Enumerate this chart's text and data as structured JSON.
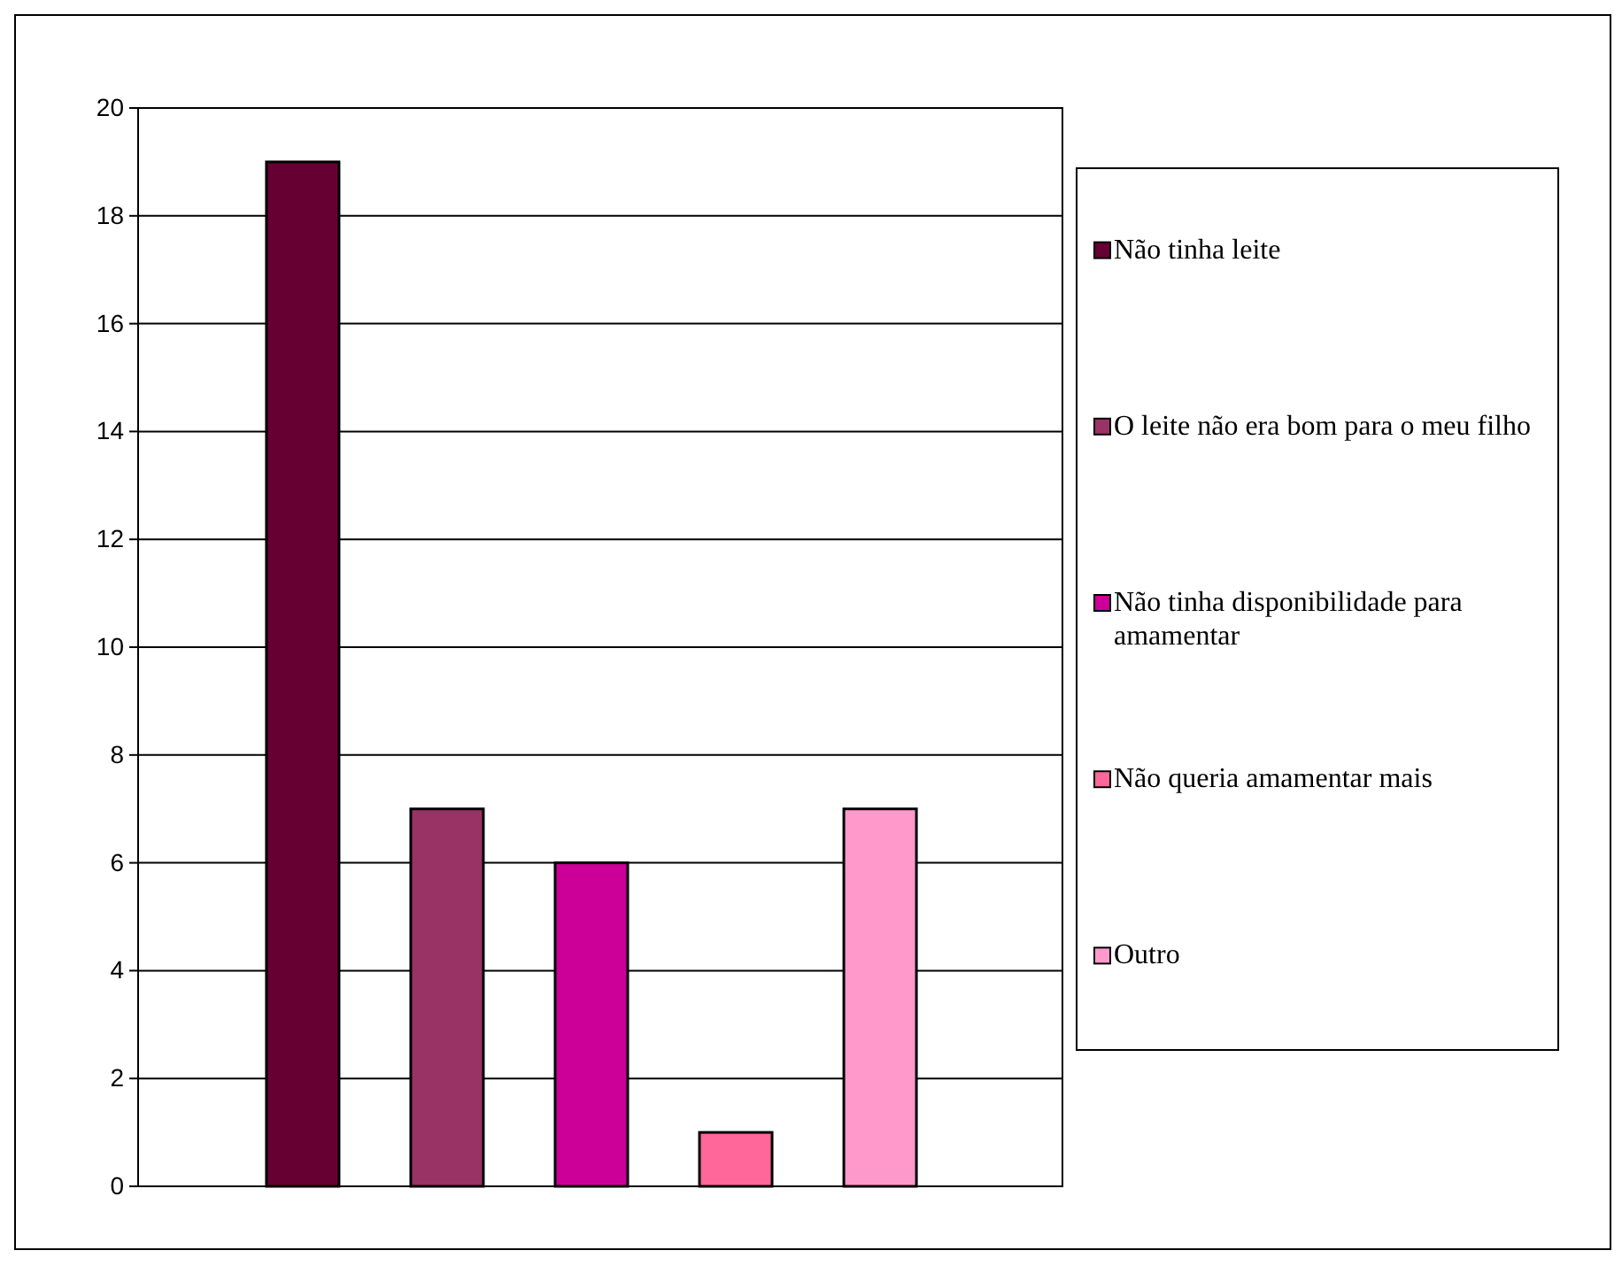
{
  "chart_data": {
    "type": "bar",
    "categories": [
      null
    ],
    "series": [
      {
        "name": "Não tinha leite",
        "color": "#660033",
        "values": [
          19
        ]
      },
      {
        "name": "O leite não era bom para o meu filho",
        "color": "#993366",
        "values": [
          7
        ]
      },
      {
        "name": "Não tinha disponibilidade para amamentar",
        "color": "#cc0099",
        "values": [
          6
        ]
      },
      {
        "name": "Não queria amamentar mais",
        "color": "#ff6699",
        "values": [
          1
        ]
      },
      {
        "name": "Outro",
        "color": "#ff99cc",
        "values": [
          7
        ]
      }
    ],
    "ylim": [
      0,
      20
    ],
    "yticks": [
      0,
      2,
      4,
      6,
      8,
      10,
      12,
      14,
      16,
      18,
      20
    ],
    "grid": "y",
    "legend": "right"
  }
}
